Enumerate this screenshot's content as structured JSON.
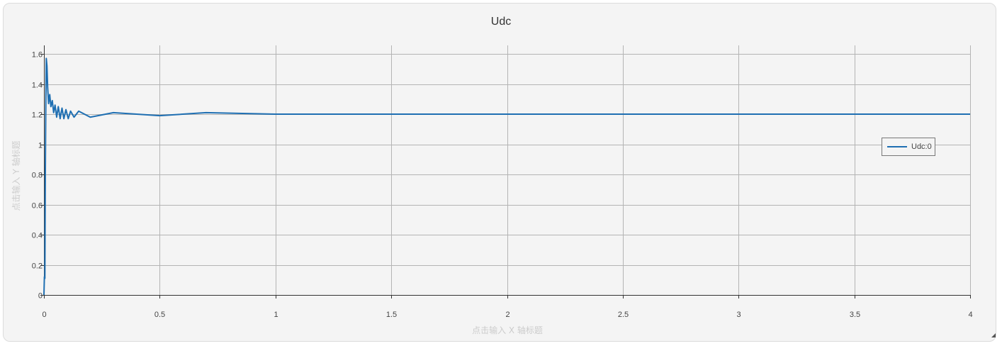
{
  "colors": {
    "series": "#1f6fb2",
    "grid": "#b4b4b4",
    "axis": "#333333",
    "panel_bg": "#f4f4f4"
  },
  "chart_data": {
    "type": "line",
    "title": "Udc",
    "xlabel": "点击输入 X 轴标题",
    "ylabel": "点击输入 Y 轴标题",
    "xlim": [
      0,
      4
    ],
    "ylim": [
      0,
      1.6
    ],
    "x_ticks": [
      "0",
      "0.5",
      "1",
      "1.5",
      "2",
      "2.5",
      "3",
      "3.5",
      "4"
    ],
    "y_ticks": [
      "0",
      "0.2",
      "0.4",
      "0.6",
      "0.8",
      "1",
      "1.2",
      "1.4",
      "1.6"
    ],
    "grid": true,
    "legend_position": "right",
    "series": [
      {
        "name": "Udc:0",
        "x": [
          0,
          0.002,
          0.004,
          0.006,
          0.008,
          0.01,
          0.013,
          0.016,
          0.02,
          0.025,
          0.03,
          0.036,
          0.042,
          0.048,
          0.055,
          0.062,
          0.07,
          0.078,
          0.086,
          0.095,
          0.105,
          0.115,
          0.13,
          0.15,
          0.2,
          0.3,
          0.5,
          0.7,
          1.0,
          1.5,
          2.0,
          3.0,
          4.0
        ],
        "values": [
          0,
          0.12,
          0.11,
          0.8,
          1.25,
          1.57,
          1.52,
          1.38,
          1.27,
          1.33,
          1.25,
          1.29,
          1.21,
          1.26,
          1.18,
          1.25,
          1.17,
          1.24,
          1.17,
          1.23,
          1.17,
          1.22,
          1.18,
          1.22,
          1.18,
          1.21,
          1.19,
          1.21,
          1.2,
          1.2,
          1.2,
          1.2,
          1.2
        ]
      }
    ]
  }
}
